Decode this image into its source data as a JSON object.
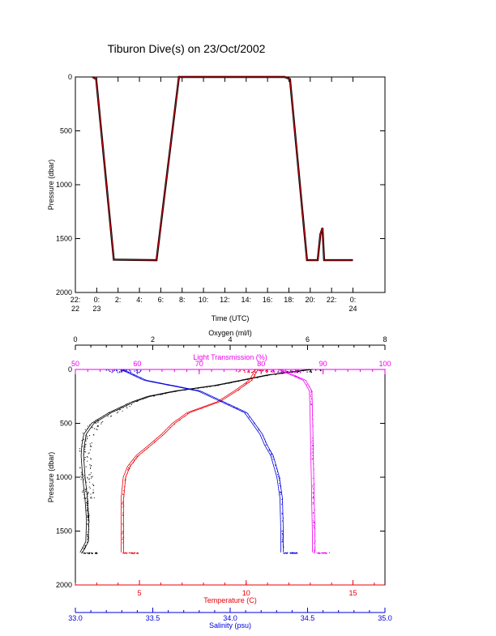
{
  "title": "Tiburon Dive(s) on 23/Oct/2002",
  "colors": {
    "black": "#000000",
    "red": "#e8000b",
    "blue": "#0000dd",
    "magenta": "#ee00ee"
  },
  "chart_data": [
    {
      "type": "line",
      "xlabel": "Time (UTC)",
      "ylabel": "Pressure (dbar)",
      "xlim": [
        22,
        51
      ],
      "ylim": [
        2000,
        0
      ],
      "x_ticks": [
        {
          "x": 22,
          "l1": "22:",
          "l2": "22"
        },
        {
          "x": 24,
          "l1": "0:",
          "l2": "23"
        },
        {
          "x": 26,
          "l1": "2:",
          "l2": ""
        },
        {
          "x": 28,
          "l1": "4:",
          "l2": ""
        },
        {
          "x": 30,
          "l1": "6:",
          "l2": ""
        },
        {
          "x": 32,
          "l1": "8:",
          "l2": ""
        },
        {
          "x": 34,
          "l1": "10:",
          "l2": ""
        },
        {
          "x": 36,
          "l1": "12:",
          "l2": ""
        },
        {
          "x": 38,
          "l1": "14:",
          "l2": ""
        },
        {
          "x": 40,
          "l1": "16:",
          "l2": ""
        },
        {
          "x": 42,
          "l1": "18:",
          "l2": ""
        },
        {
          "x": 44,
          "l1": "20:",
          "l2": ""
        },
        {
          "x": 46,
          "l1": "22:",
          "l2": ""
        },
        {
          "x": 48,
          "l1": "0:",
          "l2": "24"
        }
      ],
      "y_ticks": [
        "0",
        "500",
        "1000",
        "1500",
        "2000"
      ],
      "series": [
        {
          "color": "#e8000b",
          "points": [
            [
              23.6,
              0
            ],
            [
              23.95,
              20
            ],
            [
              25.6,
              1695
            ],
            [
              29.6,
              1700
            ],
            [
              31.7,
              0
            ],
            [
              41.0,
              0
            ],
            [
              41.6,
              0
            ],
            [
              42.1,
              20
            ],
            [
              43.7,
              1700
            ],
            [
              44.7,
              1700
            ],
            [
              44.95,
              1460
            ],
            [
              45.15,
              1400
            ],
            [
              45.3,
              1700
            ],
            [
              48.0,
              1700
            ]
          ]
        }
      ]
    },
    {
      "type": "scatter",
      "ylabel": "Pressure (dbar)",
      "ylim": [
        2000,
        0
      ],
      "y_ticks": [
        "0",
        "500",
        "1000",
        "1500",
        "2000"
      ],
      "axes": [
        {
          "name": "Oxygen (ml/l)",
          "position": "top",
          "color": "#000000",
          "range": [
            0,
            8
          ],
          "ticks": [
            "0",
            "2",
            "4",
            "6",
            "8"
          ]
        },
        {
          "name": "Light Transmission (%)",
          "position": "top",
          "color": "#ee00ee",
          "range": [
            50,
            100
          ],
          "ticks": [
            "50",
            "60",
            "70",
            "80",
            "90",
            "100"
          ]
        },
        {
          "name": "Temperature (C)",
          "position": "bottom",
          "color": "#e8000b",
          "range": [
            2,
            16.5
          ],
          "ticks": [
            "5",
            "10",
            "15"
          ],
          "tick_values": [
            5,
            10,
            15
          ]
        },
        {
          "name": "Salinity (psu)",
          "position": "bottom",
          "color": "#0000dd",
          "range": [
            33,
            35
          ],
          "ticks": [
            "33.0",
            "33.5",
            "34.0",
            "34.5",
            "35.0"
          ]
        }
      ],
      "series": [
        {
          "color": "#000000",
          "axis": "Oxygen (ml/l)",
          "profile": [
            [
              0,
              6.1
            ],
            [
              50,
              5.0
            ],
            [
              100,
              4.3
            ],
            [
              150,
              3.6
            ],
            [
              200,
              2.6
            ],
            [
              250,
              1.9
            ],
            [
              300,
              1.5
            ],
            [
              400,
              0.9
            ],
            [
              500,
              0.45
            ],
            [
              600,
              0.25
            ],
            [
              700,
              0.2
            ],
            [
              800,
              0.18
            ],
            [
              1000,
              0.22
            ],
            [
              1200,
              0.28
            ],
            [
              1400,
              0.32
            ],
            [
              1600,
              0.3
            ],
            [
              1700,
              0.15
            ]
          ]
        },
        {
          "color": "#e8000b",
          "axis": "Temperature (C)",
          "profile": [
            [
              0,
              10.5
            ],
            [
              100,
              10.2
            ],
            [
              200,
              9.5
            ],
            [
              300,
              8.7
            ],
            [
              400,
              7.3
            ],
            [
              500,
              6.6
            ],
            [
              600,
              6.1
            ],
            [
              700,
              5.5
            ],
            [
              800,
              4.9
            ],
            [
              900,
              4.5
            ],
            [
              1000,
              4.3
            ],
            [
              1200,
              4.2
            ],
            [
              1500,
              4.2
            ],
            [
              1700,
              4.2
            ]
          ]
        },
        {
          "color": "#0000dd",
          "axis": "Salinity (psu)",
          "profile": [
            [
              0,
              33.3
            ],
            [
              100,
              33.45
            ],
            [
              200,
              33.8
            ],
            [
              300,
              33.95
            ],
            [
              400,
              34.1
            ],
            [
              500,
              34.15
            ],
            [
              600,
              34.2
            ],
            [
              700,
              34.23
            ],
            [
              800,
              34.27
            ],
            [
              1000,
              34.31
            ],
            [
              1200,
              34.33
            ],
            [
              1500,
              34.335
            ],
            [
              1700,
              34.335
            ]
          ]
        },
        {
          "color": "#ee00ee",
          "axis": "Light Transmission (%)",
          "profile": [
            [
              0,
              83
            ],
            [
              50,
              85
            ],
            [
              100,
              87
            ],
            [
              200,
              88
            ],
            [
              400,
              88.1
            ],
            [
              700,
              88.2
            ],
            [
              1000,
              88.3
            ],
            [
              1300,
              88.4
            ],
            [
              1600,
              88.5
            ],
            [
              1700,
              88.5
            ]
          ]
        }
      ]
    }
  ]
}
